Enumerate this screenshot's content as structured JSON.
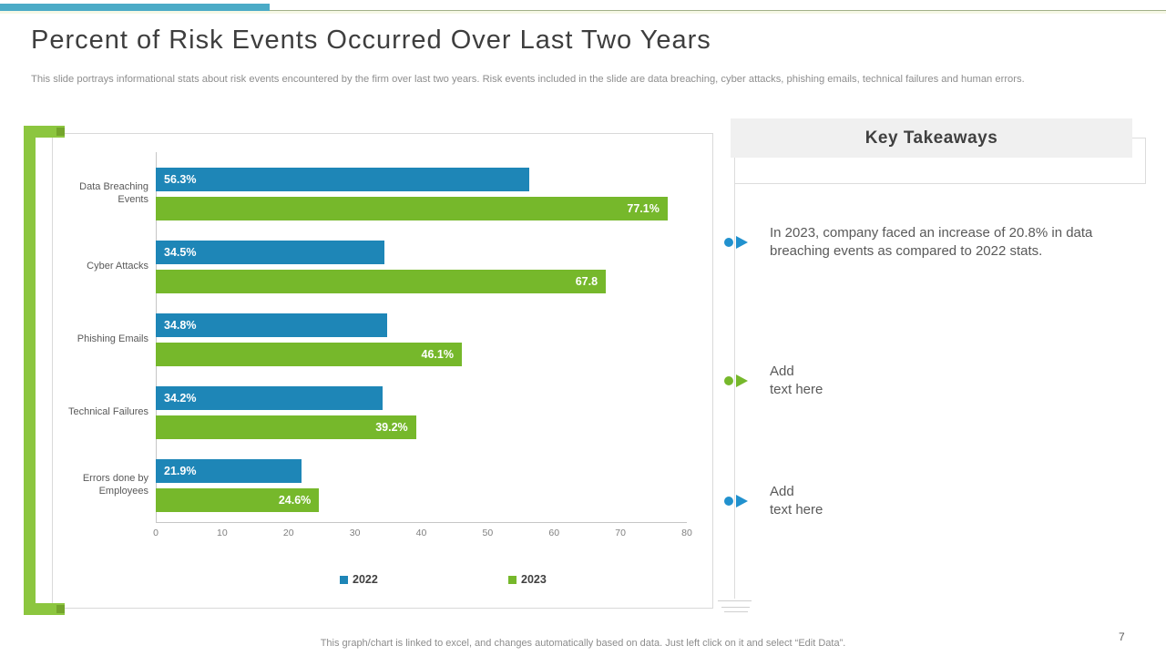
{
  "slide": {
    "title": "Percent of Risk Events Occurred Over Last Two Years",
    "subtitle": "This slide portrays informational stats about risk events encountered by the firm over last two years. Risk events included in the slide are data breaching, cyber attacks, phishing emails, technical failures and human errors.",
    "footer": "This graph/chart is linked to excel, and changes automatically based on data. Just left click on it and select “Edit Data”.",
    "page_number": "7"
  },
  "colors": {
    "accent_teal": "#4babc7",
    "frame_green": "#8cc63f",
    "bar_blue": "#1e86b7",
    "bar_green": "#76b82b",
    "bullet_blue": "#2191ce",
    "bullet_green": "#76b82b"
  },
  "chart_data": {
    "type": "bar",
    "orientation": "horizontal",
    "title": "",
    "categories": [
      "Data Breaching Events",
      "Cyber Attacks",
      "Phishing Emails",
      "Technical Failures",
      "Errors done by Employees"
    ],
    "series": [
      {
        "name": "2022",
        "color": "#1e86b7",
        "values": [
          56.3,
          34.5,
          34.8,
          34.2,
          21.9
        ],
        "labels": [
          "56.3%",
          "34.5%",
          "34.8%",
          "34.2%",
          "21.9%"
        ]
      },
      {
        "name": "2023",
        "color": "#76b82b",
        "values": [
          77.1,
          67.8,
          46.1,
          39.2,
          24.6
        ],
        "labels": [
          "77.1%",
          "67.8",
          "46.1%",
          "39.2%",
          "24.6%"
        ]
      }
    ],
    "xlim": [
      0,
      80
    ],
    "x_ticks": [
      0,
      10,
      20,
      30,
      40,
      50,
      60,
      70,
      80
    ],
    "grid": false,
    "legend_position": "bottom"
  },
  "takeaways": {
    "heading": "Key Takeaways",
    "items": [
      {
        "color": "#2191ce",
        "text": "In 2023, company faced an increase of 20.8% in data breaching events as compared to 2022 stats."
      },
      {
        "color": "#76b82b",
        "text": "Add\ntext here"
      },
      {
        "color": "#2191ce",
        "text": "Add\ntext here"
      }
    ]
  }
}
